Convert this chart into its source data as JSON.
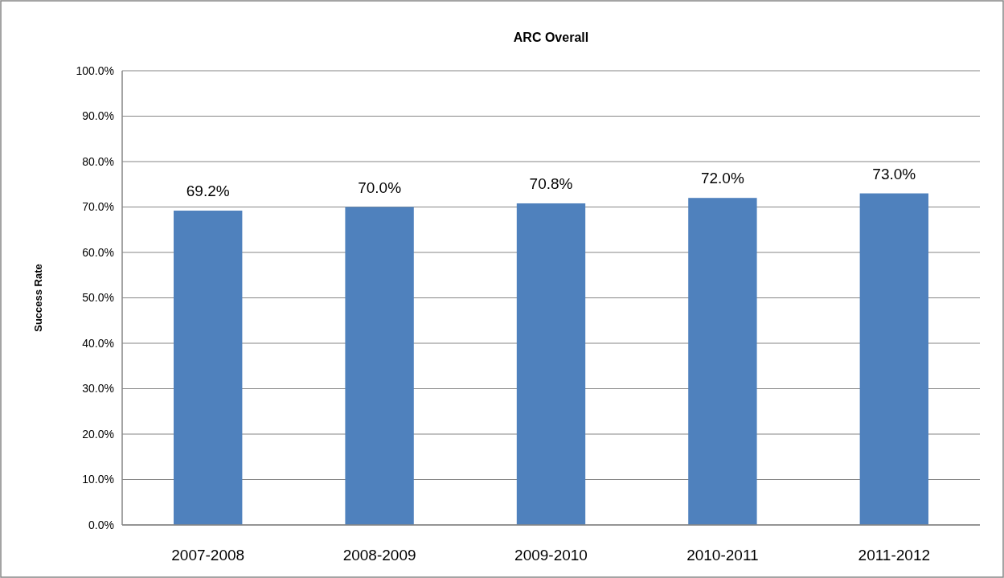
{
  "chart_data": {
    "type": "bar",
    "title": "ARC Overall",
    "ylabel": "Success Rate",
    "categories": [
      "2007-2008",
      "2008-2009",
      "2009-2010",
      "2010-2011",
      "2011-2012"
    ],
    "values": [
      69.2,
      70.0,
      70.8,
      72.0,
      73.0
    ],
    "value_labels": [
      "69.2%",
      "70.0%",
      "70.8%",
      "72.0%",
      "73.0%"
    ],
    "color": "#4f81bd",
    "ylim": [
      0,
      100
    ],
    "yticks": [
      {
        "value": 0,
        "label": "0.0%"
      },
      {
        "value": 10,
        "label": "10.0%"
      },
      {
        "value": 20,
        "label": "20.0%"
      },
      {
        "value": 30,
        "label": "30.0%"
      },
      {
        "value": 40,
        "label": "40.0%"
      },
      {
        "value": 50,
        "label": "50.0%"
      },
      {
        "value": 60,
        "label": "60.0%"
      },
      {
        "value": 70,
        "label": "70.0%"
      },
      {
        "value": 80,
        "label": "80.0%"
      },
      {
        "value": 90,
        "label": "90.0%"
      },
      {
        "value": 100,
        "label": "100.0%"
      }
    ],
    "grid": "y"
  }
}
